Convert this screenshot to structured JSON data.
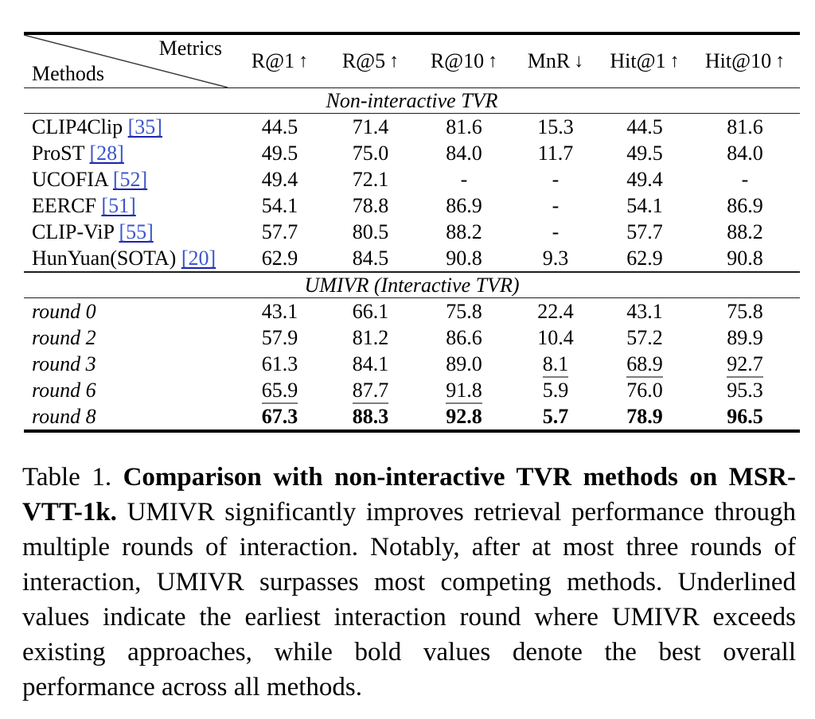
{
  "table": {
    "corner": {
      "top_label": "Metrics",
      "bottom_label": "Methods"
    },
    "columns": [
      {
        "label": "R@1",
        "arrow": "↑"
      },
      {
        "label": "R@5",
        "arrow": "↑"
      },
      {
        "label": "R@10",
        "arrow": "↑"
      },
      {
        "label": "MnR",
        "arrow": "↓"
      },
      {
        "label": "Hit@1",
        "arrow": "↑"
      },
      {
        "label": "Hit@10",
        "arrow": "↑"
      }
    ],
    "sections": [
      {
        "title": "Non-interactive TVR",
        "methods_italic": false,
        "rows": [
          {
            "method": "CLIP4Clip",
            "cite": "[35]",
            "values": [
              "44.5",
              "71.4",
              "81.6",
              "15.3",
              "44.5",
              "81.6"
            ],
            "styles": [
              "",
              "",
              "",
              "",
              "",
              ""
            ]
          },
          {
            "method": "ProST",
            "cite": "[28]",
            "values": [
              "49.5",
              "75.0",
              "84.0",
              "11.7",
              "49.5",
              "84.0"
            ],
            "styles": [
              "",
              "",
              "",
              "",
              "",
              ""
            ]
          },
          {
            "method": "UCOFIA",
            "cite": "[52]",
            "values": [
              "49.4",
              "72.1",
              "-",
              "-",
              "49.4",
              "-"
            ],
            "styles": [
              "",
              "",
              "",
              "",
              "",
              ""
            ]
          },
          {
            "method": "EERCF",
            "cite": "[51]",
            "values": [
              "54.1",
              "78.8",
              "86.9",
              "-",
              "54.1",
              "86.9"
            ],
            "styles": [
              "",
              "",
              "",
              "",
              "",
              ""
            ]
          },
          {
            "method": "CLIP-ViP",
            "cite": "[55]",
            "values": [
              "57.7",
              "80.5",
              "88.2",
              "-",
              "57.7",
              "88.2"
            ],
            "styles": [
              "",
              "",
              "",
              "",
              "",
              ""
            ]
          },
          {
            "method": "HunYuan(SOTA)",
            "cite": "[20]",
            "values": [
              "62.9",
              "84.5",
              "90.8",
              "9.3",
              "62.9",
              "90.8"
            ],
            "styles": [
              "",
              "",
              "",
              "",
              "",
              ""
            ]
          }
        ]
      },
      {
        "title": "UMIVR (Interactive TVR)",
        "methods_italic": true,
        "rows": [
          {
            "method": "round 0",
            "cite": "",
            "values": [
              "43.1",
              "66.1",
              "75.8",
              "22.4",
              "43.1",
              "75.8"
            ],
            "styles": [
              "",
              "",
              "",
              "",
              "",
              ""
            ]
          },
          {
            "method": "round 2",
            "cite": "",
            "values": [
              "57.9",
              "81.2",
              "86.6",
              "10.4",
              "57.2",
              "89.9"
            ],
            "styles": [
              "",
              "",
              "",
              "",
              "",
              ""
            ]
          },
          {
            "method": "round 3",
            "cite": "",
            "values": [
              "61.3",
              "84.1",
              "89.0",
              "8.1",
              "68.9",
              "92.7"
            ],
            "styles": [
              "",
              "",
              "",
              "u",
              "u",
              "u"
            ]
          },
          {
            "method": "round 6",
            "cite": "",
            "values": [
              "65.9",
              "87.7",
              "91.8",
              "5.9",
              "76.0",
              "95.3"
            ],
            "styles": [
              "u",
              "u",
              "u",
              "",
              "",
              ""
            ]
          },
          {
            "method": "round 8",
            "cite": "",
            "values": [
              "67.3",
              "88.3",
              "92.8",
              "5.7",
              "78.9",
              "96.5"
            ],
            "styles": [
              "b",
              "b",
              "b",
              "b",
              "b",
              "b"
            ]
          }
        ]
      }
    ]
  },
  "caption": {
    "prefix": "Table 1. ",
    "bold": "Comparison with non-interactive TVR methods on MSR-VTT-1k. ",
    "body": "UMIVR significantly improves retrieval performance through multiple rounds of interaction. Notably, after at most three rounds of interaction, UMIVR surpasses most competing methods. Underlined values indicate the earliest interaction round where UMIVR exceeds existing approaches, while bold values denote the best overall performance across all methods."
  },
  "colors": {
    "cite_blue": "#3d55cc",
    "cite_underline": "#1b22ad",
    "value_underline_gray": "#7d7d7d",
    "rule_black": "#000000"
  }
}
